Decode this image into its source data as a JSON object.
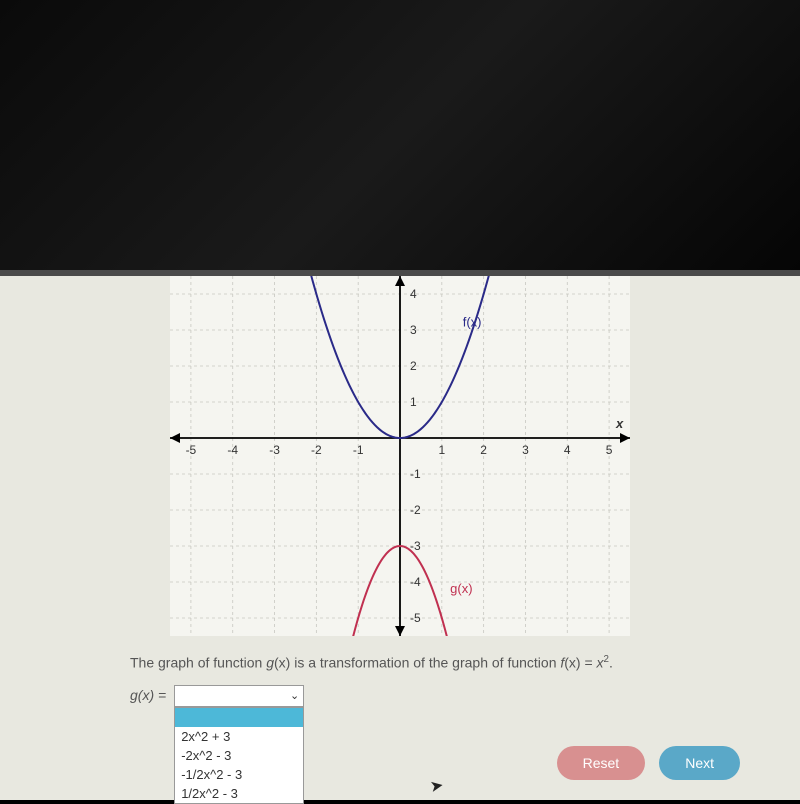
{
  "graph": {
    "background_color": "#f5f5f0",
    "grid_color": "#c8c8c0",
    "axis_color": "#000000",
    "xlim": [
      -5.5,
      5.5
    ],
    "ylim": [
      -5.5,
      4.5
    ],
    "xticks": [
      -5,
      -4,
      -3,
      -2,
      -1,
      1,
      2,
      3,
      4,
      5
    ],
    "yticks": [
      -5,
      -4,
      -3,
      -2,
      -1,
      1,
      2,
      3,
      4
    ],
    "x_axis_label": "x",
    "tick_fontsize": 12,
    "tick_color": "#333333",
    "curves": [
      {
        "label": "f(x)",
        "label_pos": {
          "x": 1.5,
          "y": 3.1
        },
        "color": "#2a2a88",
        "line_width": 2,
        "type": "parabola",
        "a": 1.0,
        "h": 0,
        "k": 0,
        "x_range": [
          -2.2,
          2.2
        ]
      },
      {
        "label": "g(x)",
        "label_pos": {
          "x": 1.2,
          "y": -4.3
        },
        "color": "#c03050",
        "line_width": 2,
        "type": "parabola",
        "a": -2.0,
        "h": 0,
        "k": -3,
        "x_range": [
          -1.2,
          1.2
        ]
      }
    ]
  },
  "question": {
    "prefix": "The graph of function ",
    "g": "g",
    "x1": "(x)",
    "mid": " is a transformation of the graph of function ",
    "f": "f",
    "x2": "(x) = ",
    "xvar": "x",
    "exp": "2",
    "suffix": "."
  },
  "answer": {
    "label_g": "g",
    "label_paren": "(x) =",
    "options": [
      "2x^2 + 3",
      "-2x^2 - 3",
      "-1/2x^2 - 3",
      "1/2x^2 - 3"
    ],
    "selected_value": ""
  },
  "buttons": {
    "reset": "Reset",
    "next": "Next"
  }
}
